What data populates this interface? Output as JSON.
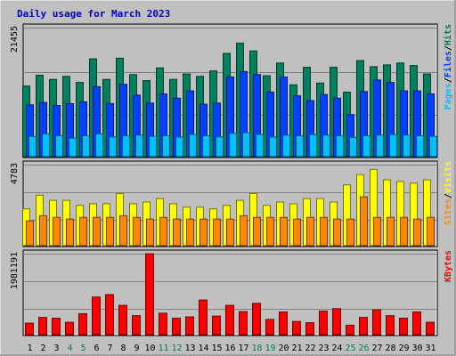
{
  "chart_data": {
    "type": "bar",
    "title": "Daily usage for March 2023",
    "days": [
      "1",
      "2",
      "3",
      "4",
      "5",
      "6",
      "7",
      "8",
      "9",
      "10",
      "11",
      "12",
      "13",
      "14",
      "15",
      "16",
      "17",
      "18",
      "19",
      "20",
      "21",
      "22",
      "23",
      "24",
      "25",
      "26",
      "27",
      "28",
      "29",
      "30",
      "31"
    ],
    "weekend_days": [
      4,
      5,
      11,
      12,
      18,
      19,
      25,
      26
    ],
    "panels": [
      {
        "id": "hits",
        "max_label": "21455",
        "ylim": [
          0,
          21455
        ],
        "legend": [
          "Pages",
          "Files",
          "Hits"
        ],
        "series": [
          {
            "name": "Hits",
            "values": [
              11800,
              13600,
              12900,
              13400,
              12400,
              16300,
              12900,
              16400,
              13700,
              12700,
              14800,
              12900,
              13800,
              13400,
              14300,
              17200,
              18900,
              17600,
              13500,
              15600,
              12000,
              14900,
              12300,
              14900,
              10800,
              16000,
              15000,
              15300,
              15600,
              15200,
              13800
            ]
          },
          {
            "name": "Files",
            "values": [
              8700,
              9100,
              8600,
              8900,
              9200,
              11700,
              8900,
              12100,
              10300,
              9000,
              10500,
              9800,
              11000,
              8800,
              9000,
              13300,
              14200,
              13700,
              10800,
              13300,
              10200,
              9400,
              10400,
              9800,
              7100,
              10900,
              12800,
              12400,
              11000,
              11000,
              10500
            ]
          },
          {
            "name": "Pages",
            "values": [
              3500,
              3900,
              3600,
              3200,
              3600,
              3900,
              3400,
              3600,
              3700,
              3500,
              3600,
              3400,
              3800,
              3600,
              3400,
              4000,
              4100,
              3800,
              3400,
              3700,
              3600,
              3800,
              3700,
              3600,
              3300,
              3600,
              3700,
              3800,
              3700,
              3600,
              3500
            ]
          }
        ],
        "colors": {
          "Hits": "#00805c",
          "Files": "#0040ff",
          "Pages": "#00c0ff"
        }
      },
      {
        "id": "visits",
        "max_label": "4783",
        "ylim": [
          0,
          4783
        ],
        "legend": [
          "Sites",
          "Visits"
        ],
        "series": [
          {
            "name": "Visits",
            "values": [
              2200,
              3000,
              2700,
              2700,
              2400,
              2500,
              2500,
              3100,
              2500,
              2600,
              2800,
              2500,
              2300,
              2300,
              2200,
              2400,
              2700,
              3100,
              2400,
              2600,
              2500,
              2800,
              2800,
              2600,
              3600,
              4200,
              4500,
              3900,
              3800,
              3700,
              3900
            ]
          },
          {
            "name": "Sites",
            "values": [
              1500,
              1800,
              1700,
              1600,
              1700,
              1700,
              1700,
              1800,
              1700,
              1600,
              1700,
              1600,
              1600,
              1600,
              1600,
              1600,
              1800,
              1700,
              1700,
              1700,
              1600,
              1700,
              1700,
              1600,
              1600,
              2900,
              1700,
              1700,
              1700,
              1600,
              1700
            ]
          }
        ],
        "colors": {
          "Visits": "#ffff00",
          "Sites": "#ff8800"
        }
      },
      {
        "id": "kbytes",
        "max_label": "1981191",
        "ylim": [
          0,
          1981191
        ],
        "legend": [
          "KBytes"
        ],
        "series": [
          {
            "name": "KBytes",
            "values": [
              300000,
              440000,
              420000,
              320000,
              530000,
              930000,
              990000,
              730000,
              480000,
              1980000,
              540000,
              420000,
              450000,
              860000,
              470000,
              730000,
              580000,
              780000,
              390000,
              570000,
              340000,
              310000,
              590000,
              650000,
              250000,
              440000,
              620000,
              480000,
              420000,
              570000,
              320000
            ]
          }
        ],
        "colors": {
          "KBytes": "#ff0000"
        }
      }
    ],
    "colors": {
      "weekday_label": "#000000",
      "weekend_label": "#00805c",
      "legend_sep": "#000000"
    }
  }
}
